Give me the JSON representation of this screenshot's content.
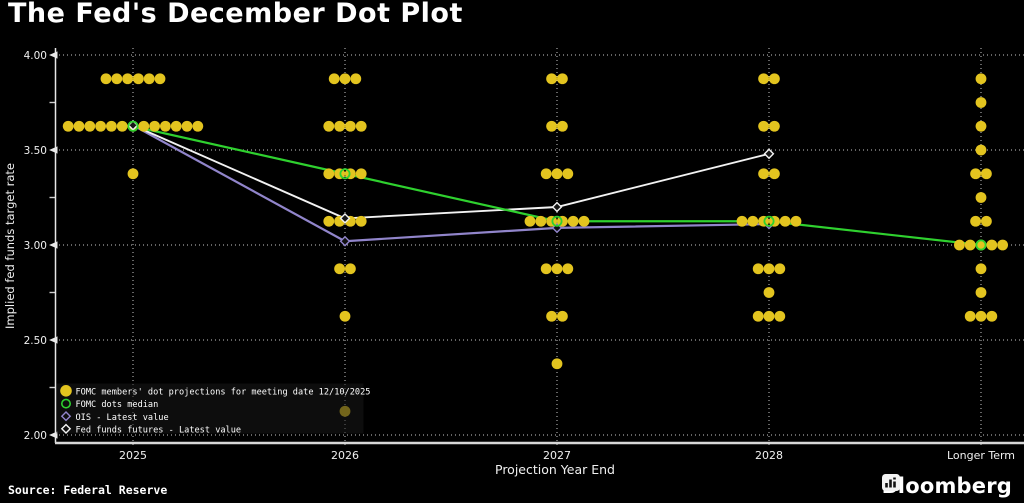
{
  "title": "The Fed's December Dot Plot",
  "source": "Source: Federal Reserve",
  "brand": {
    "name": "Bloomberg",
    "icon": "bar-chart-badge"
  },
  "colors": {
    "background": "#000000",
    "dot_yellow": "#e3c41f",
    "median_green": "#2fd12f",
    "ois_purple": "#9185cb",
    "futures_white": "#f2f2f2",
    "grid": "#c9c9c9",
    "axis": "#d8d8d8",
    "text": "#f0f0f0",
    "legend_bg": "rgba(24,24,24,0.55)"
  },
  "legend": {
    "items": [
      {
        "symbol": "filled-circle",
        "color": "#e3c41f",
        "label": "FOMC members' dot projections for meeting date 12/10/2025"
      },
      {
        "symbol": "open-circle",
        "color": "#2fd12f",
        "label": "FOMC dots median"
      },
      {
        "symbol": "open-diamond",
        "color": "#9185cb",
        "label": "OIS - Latest value"
      },
      {
        "symbol": "open-diamond",
        "color": "#f2f2f2",
        "label": "Fed funds futures - Latest value"
      }
    ]
  },
  "chart_data": {
    "type": "scatter",
    "title": "The Fed's December Dot Plot",
    "xlabel": "Projection Year End",
    "ylabel": "Implied fed funds target rate",
    "categories": [
      "2025",
      "2026",
      "2027",
      "2028",
      "Longer Term"
    ],
    "ylim": [
      2.0,
      4.0
    ],
    "yticks": [
      4.0,
      3.5,
      3.0,
      2.5,
      2.0
    ],
    "ytick_labels": [
      "4.00",
      "3.50",
      "3.00",
      "2.50",
      "2.00"
    ],
    "yticks_minor": [
      3.75,
      3.25,
      2.75,
      2.25
    ],
    "grid": "dotted",
    "legend_position": "bottom-left",
    "dot_projections": [
      {
        "year": "2025",
        "dots": [
          {
            "rate": 3.875,
            "count": 6
          },
          {
            "rate": 3.625,
            "count": 13
          },
          {
            "rate": 3.375,
            "count": 1
          }
        ]
      },
      {
        "year": "2026",
        "dots": [
          {
            "rate": 3.875,
            "count": 3
          },
          {
            "rate": 3.625,
            "count": 4
          },
          {
            "rate": 3.375,
            "count": 4
          },
          {
            "rate": 3.125,
            "count": 4
          },
          {
            "rate": 2.875,
            "count": 2
          },
          {
            "rate": 2.625,
            "count": 1
          },
          {
            "rate": 2.125,
            "count": 1
          }
        ]
      },
      {
        "year": "2027",
        "dots": [
          {
            "rate": 3.875,
            "count": 2
          },
          {
            "rate": 3.625,
            "count": 2
          },
          {
            "rate": 3.375,
            "count": 3
          },
          {
            "rate": 3.125,
            "count": 6
          },
          {
            "rate": 2.875,
            "count": 3
          },
          {
            "rate": 2.625,
            "count": 2
          },
          {
            "rate": 2.375,
            "count": 1
          }
        ]
      },
      {
        "year": "2028",
        "dots": [
          {
            "rate": 3.875,
            "count": 2
          },
          {
            "rate": 3.625,
            "count": 2
          },
          {
            "rate": 3.375,
            "count": 2
          },
          {
            "rate": 3.125,
            "count": 6
          },
          {
            "rate": 2.875,
            "count": 3
          },
          {
            "rate": 2.75,
            "count": 1
          },
          {
            "rate": 2.625,
            "count": 3
          }
        ]
      },
      {
        "year": "Longer Term",
        "dots": [
          {
            "rate": 3.875,
            "count": 1
          },
          {
            "rate": 3.75,
            "count": 1
          },
          {
            "rate": 3.625,
            "count": 1
          },
          {
            "rate": 3.5,
            "count": 1
          },
          {
            "rate": 3.375,
            "count": 2
          },
          {
            "rate": 3.25,
            "count": 1
          },
          {
            "rate": 3.125,
            "count": 2
          },
          {
            "rate": 3.0,
            "count": 5
          },
          {
            "rate": 2.875,
            "count": 1
          },
          {
            "rate": 2.75,
            "count": 1
          },
          {
            "rate": 2.625,
            "count": 3
          }
        ]
      }
    ],
    "series": [
      {
        "name": "FOMC dots median",
        "marker": "open-circle",
        "color": "#2fd12f",
        "x": [
          "2025",
          "2026",
          "2027",
          "2028",
          "Longer Term"
        ],
        "values": [
          3.625,
          3.375,
          3.125,
          3.125,
          3.0
        ]
      },
      {
        "name": "Fed funds futures - Latest value",
        "marker": "open-diamond",
        "color": "#f2f2f2",
        "x": [
          "2025",
          "2026",
          "2027",
          "2028"
        ],
        "values": [
          3.63,
          3.14,
          3.2,
          3.48
        ]
      },
      {
        "name": "OIS - Latest value",
        "marker": "open-diamond",
        "color": "#9185cb",
        "x": [
          "2025",
          "2026",
          "2027",
          "2028"
        ],
        "values": [
          3.63,
          3.02,
          3.09,
          3.11
        ]
      }
    ]
  }
}
